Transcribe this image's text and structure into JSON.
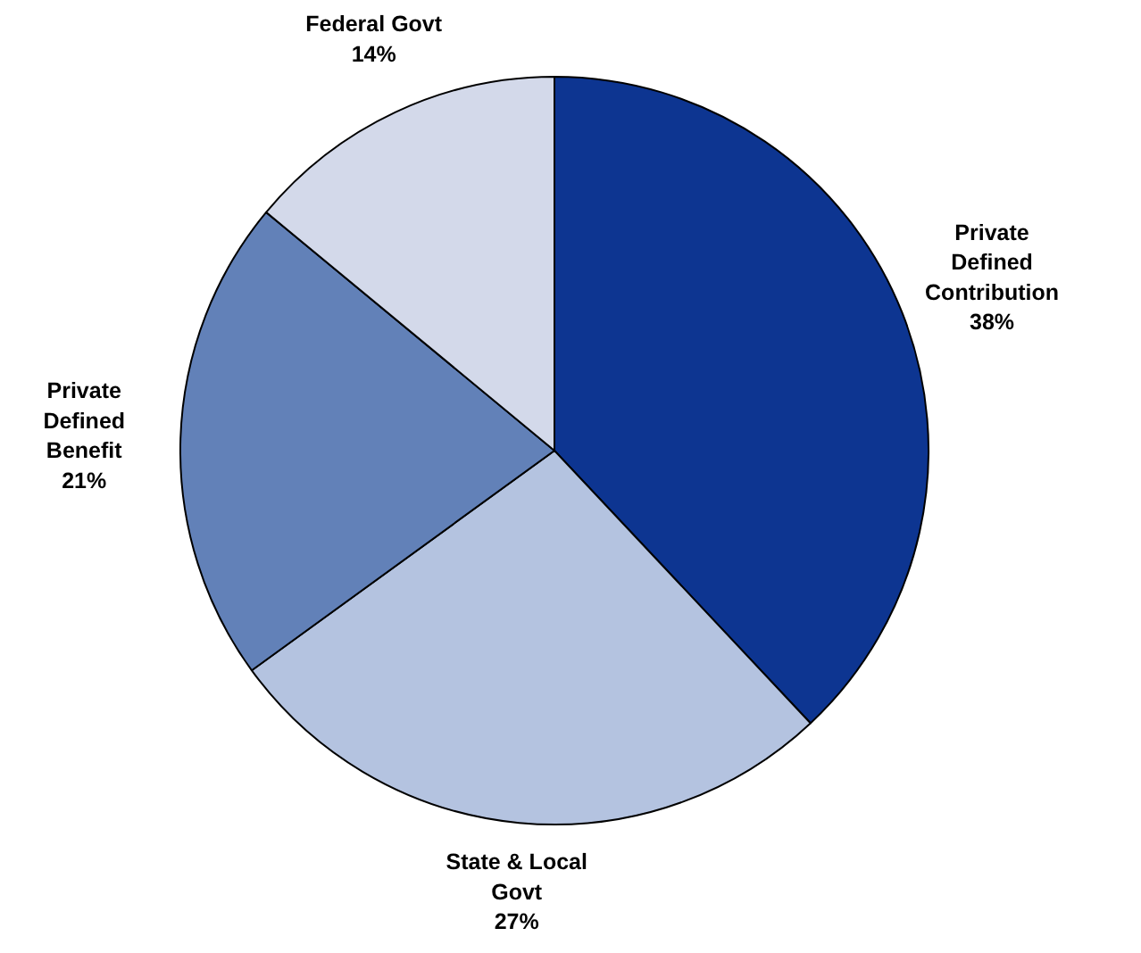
{
  "chart_data": {
    "type": "pie",
    "categories": [
      "Private\nDefined\nContribution",
      "State & Local\nGovt",
      "Private\nDefined\nBenefit",
      "Federal Govt"
    ],
    "values": [
      38,
      27,
      21,
      14
    ],
    "colors": [
      "#0d3591",
      "#b4c3e0",
      "#6281b8",
      "#d3d9ea"
    ],
    "value_labels": [
      "38%",
      "27%",
      "21%",
      "14%"
    ]
  }
}
